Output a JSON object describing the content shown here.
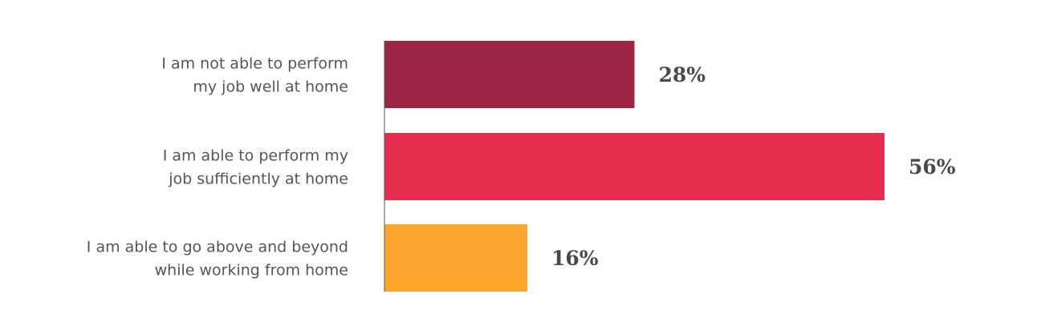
{
  "chart_data": {
    "type": "bar",
    "orientation": "horizontal",
    "categories": [
      [
        "I am not able to perform",
        "my job well at home"
      ],
      [
        "I am able to perform my",
        "job sufficiently at home"
      ],
      [
        "I am able to go above and beyond",
        "while working from home"
      ]
    ],
    "values": [
      28,
      56,
      16
    ],
    "value_labels": [
      "28%",
      "56%",
      "16%"
    ],
    "colors": [
      "#9c2444",
      "#e52d50",
      "#fca42c"
    ],
    "axis_color": "#555555",
    "xlim": [
      0,
      100
    ],
    "grid": false,
    "legend": "none"
  }
}
